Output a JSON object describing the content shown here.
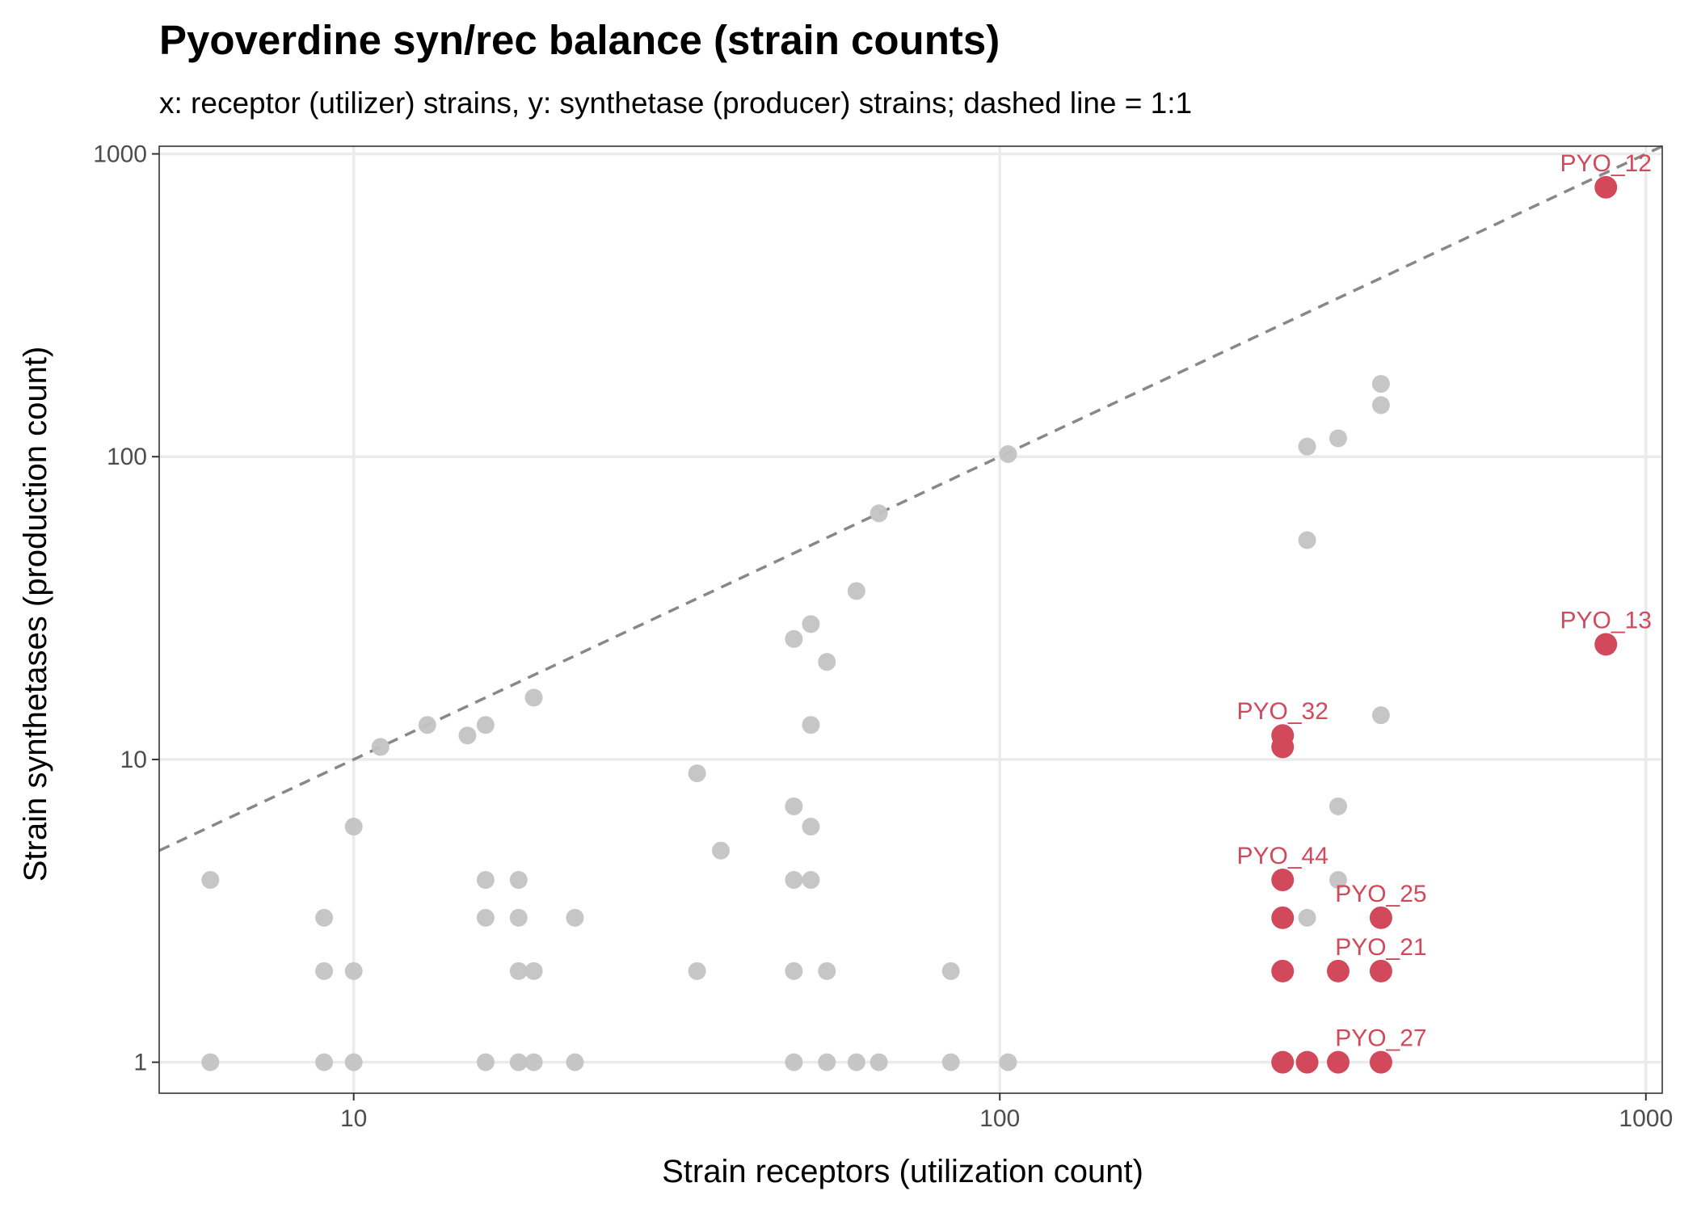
{
  "colors": {
    "background_point": "#c3c3c3",
    "highlight_point": "#d1495b",
    "reference_line": "#888888",
    "grid": "#ebebeb",
    "panel_border": "#333333"
  },
  "chart_data": {
    "type": "scatter",
    "title": "Pyoverdine syn/rec balance (strain counts)",
    "subtitle": "x: receptor (utilizer) strains, y: synthetase (producer) strains; dashed line = 1:1",
    "xlabel": "Strain receptors (utilization count)",
    "ylabel": "Strain synthetases (production count)",
    "x_scale": "log10",
    "y_scale": "log10",
    "xlim": [
      5.0,
      1060
    ],
    "ylim": [
      0.79,
      1060
    ],
    "x_ticks": [
      10,
      100,
      1000
    ],
    "x_tick_labels": [
      "10",
      "100",
      "1000"
    ],
    "y_ticks": [
      1,
      10,
      100,
      1000
    ],
    "y_tick_labels": [
      "1",
      "10",
      "100",
      "1000"
    ],
    "grid": true,
    "reference_line": {
      "style": "dashed",
      "slope": 1,
      "intercept": 0
    },
    "series": [
      {
        "style": "background",
        "points": [
          {
            "x": 6,
            "y": 4
          },
          {
            "x": 6,
            "y": 1
          },
          {
            "x": 9,
            "y": 3
          },
          {
            "x": 9,
            "y": 2
          },
          {
            "x": 9,
            "y": 1
          },
          {
            "x": 10,
            "y": 6
          },
          {
            "x": 10,
            "y": 2
          },
          {
            "x": 10,
            "y": 1
          },
          {
            "x": 11,
            "y": 11
          },
          {
            "x": 13,
            "y": 13
          },
          {
            "x": 15,
            "y": 12
          },
          {
            "x": 16,
            "y": 13
          },
          {
            "x": 16,
            "y": 4
          },
          {
            "x": 16,
            "y": 3
          },
          {
            "x": 16,
            "y": 1
          },
          {
            "x": 18,
            "y": 4
          },
          {
            "x": 18,
            "y": 3
          },
          {
            "x": 18,
            "y": 2
          },
          {
            "x": 18,
            "y": 1
          },
          {
            "x": 19,
            "y": 16
          },
          {
            "x": 19,
            "y": 2
          },
          {
            "x": 19,
            "y": 1
          },
          {
            "x": 22,
            "y": 3
          },
          {
            "x": 22,
            "y": 1
          },
          {
            "x": 34,
            "y": 9
          },
          {
            "x": 34,
            "y": 2
          },
          {
            "x": 37,
            "y": 5
          },
          {
            "x": 48,
            "y": 25
          },
          {
            "x": 48,
            "y": 7
          },
          {
            "x": 48,
            "y": 4
          },
          {
            "x": 48,
            "y": 2
          },
          {
            "x": 48,
            "y": 1
          },
          {
            "x": 51,
            "y": 28
          },
          {
            "x": 51,
            "y": 13
          },
          {
            "x": 51,
            "y": 6
          },
          {
            "x": 51,
            "y": 4
          },
          {
            "x": 54,
            "y": 21
          },
          {
            "x": 54,
            "y": 2
          },
          {
            "x": 54,
            "y": 1
          },
          {
            "x": 60,
            "y": 36
          },
          {
            "x": 60,
            "y": 1
          },
          {
            "x": 65,
            "y": 65
          },
          {
            "x": 65,
            "y": 1
          },
          {
            "x": 84,
            "y": 2
          },
          {
            "x": 84,
            "y": 1
          },
          {
            "x": 103,
            "y": 102
          },
          {
            "x": 103,
            "y": 1
          },
          {
            "x": 299,
            "y": 108
          },
          {
            "x": 299,
            "y": 53
          },
          {
            "x": 299,
            "y": 3
          },
          {
            "x": 334,
            "y": 115
          },
          {
            "x": 334,
            "y": 7
          },
          {
            "x": 334,
            "y": 4
          },
          {
            "x": 389,
            "y": 174
          },
          {
            "x": 389,
            "y": 148
          },
          {
            "x": 389,
            "y": 14
          }
        ]
      },
      {
        "style": "highlight",
        "points": [
          {
            "x": 867,
            "y": 776,
            "label": "PYO_12"
          },
          {
            "x": 867,
            "y": 24,
            "label": "PYO_13"
          },
          {
            "x": 274,
            "y": 12,
            "label": "PYO_32"
          },
          {
            "x": 274,
            "y": 11
          },
          {
            "x": 274,
            "y": 4,
            "label": "PYO_44"
          },
          {
            "x": 274,
            "y": 3
          },
          {
            "x": 274,
            "y": 2
          },
          {
            "x": 274,
            "y": 1
          },
          {
            "x": 299,
            "y": 1
          },
          {
            "x": 334,
            "y": 2
          },
          {
            "x": 334,
            "y": 1
          },
          {
            "x": 389,
            "y": 3,
            "label": "PYO_25"
          },
          {
            "x": 389,
            "y": 2,
            "label": "PYO_21"
          },
          {
            "x": 389,
            "y": 1,
            "label": "PYO_27"
          }
        ]
      }
    ]
  }
}
